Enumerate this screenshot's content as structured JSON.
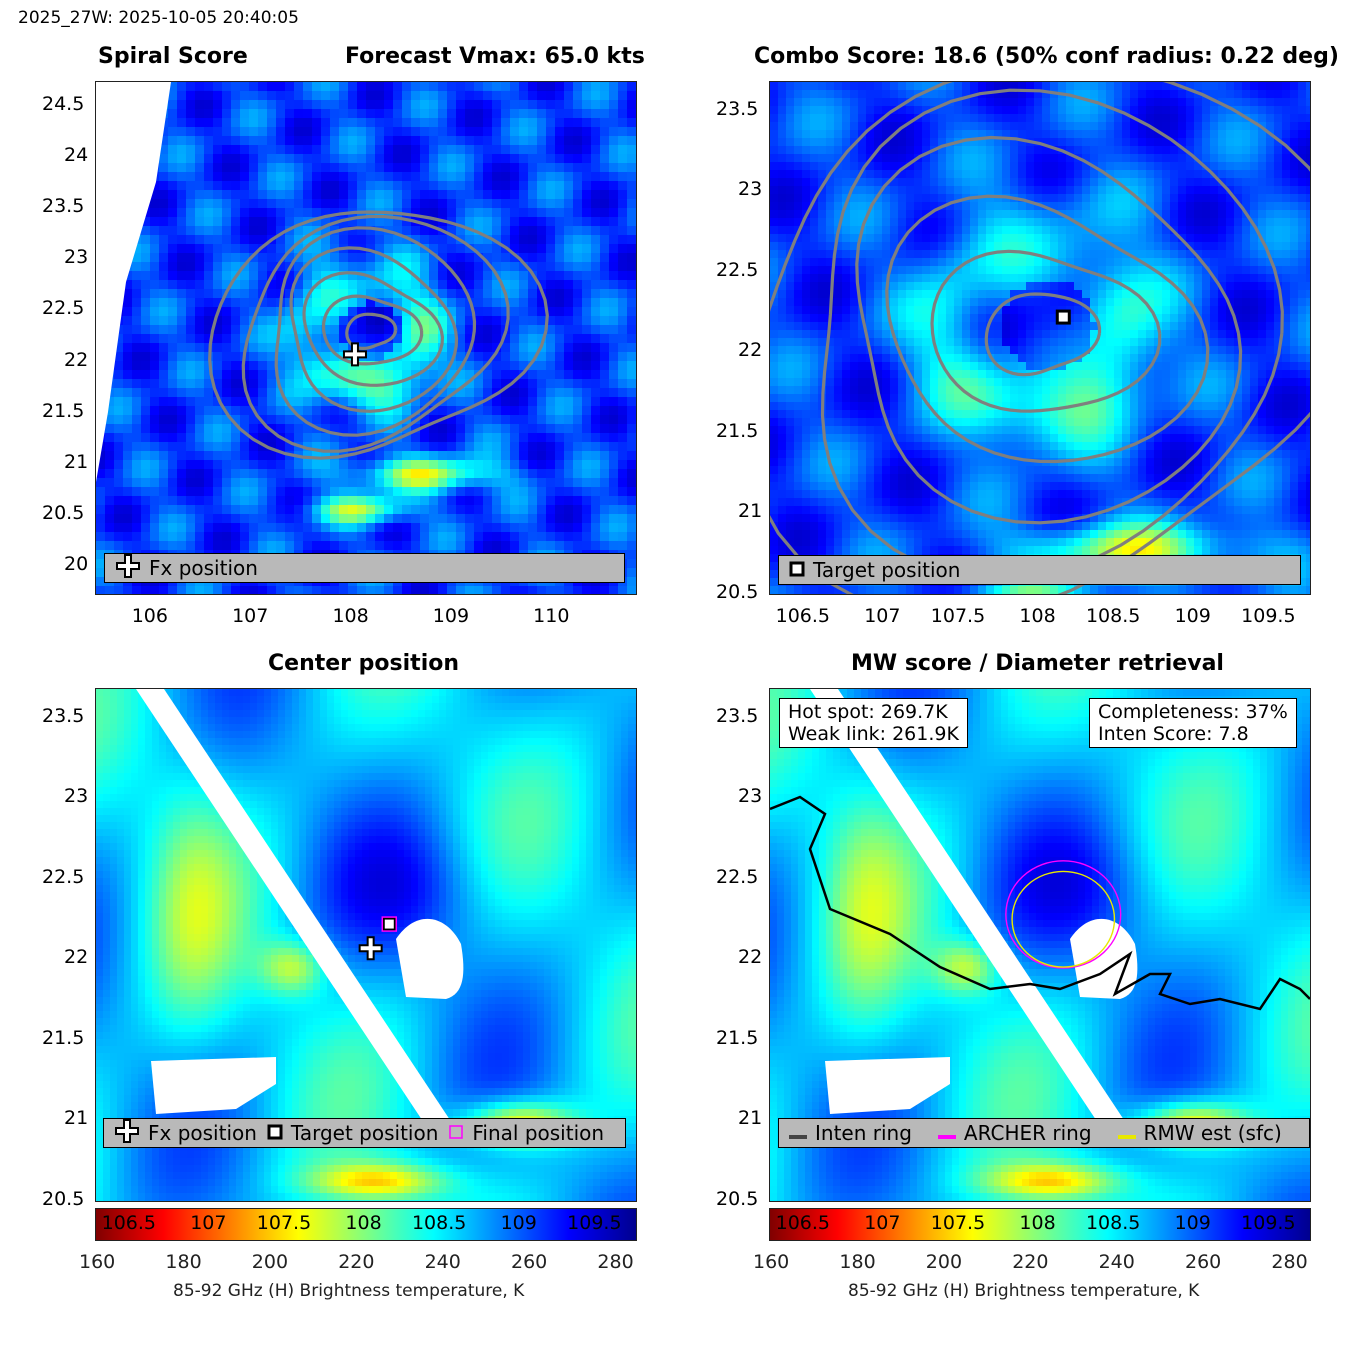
{
  "header": "2025_27W: 2025-10-05 20:40:05",
  "colors": {
    "colormap": [
      "#800000",
      "#ff0000",
      "#ff8000",
      "#ffff00",
      "#80ff80",
      "#00ffff",
      "#0080ff",
      "#0000ff",
      "#00008f"
    ],
    "contour": "#7f7f7f",
    "land": "#ffffff",
    "archer": "#ff00ff",
    "rmw": "#e8e800",
    "coast": "#000000"
  },
  "panels": {
    "spiral": {
      "title_left": "Spiral Score",
      "title_right": "Forecast Vmax: 65.0 kts",
      "legend": [
        "Fx position"
      ],
      "legend_icons": [
        "white-cross-icon"
      ]
    },
    "combo": {
      "title": "Combo Score: 18.6  (50% conf radius: 0.22 deg)",
      "legend": [
        "Target position"
      ],
      "legend_icons": [
        "black-square-icon"
      ]
    },
    "center": {
      "title": "Center position",
      "legend": [
        "Fx position",
        "Target position",
        "Final position"
      ],
      "legend_icons": [
        "white-cross-icon",
        "black-square-icon",
        "magenta-square-icon"
      ]
    },
    "mw": {
      "title": "MW score / Diameter retrieval",
      "info_left": [
        "Hot spot: 269.7K",
        "Weak link: 261.9K"
      ],
      "info_right": [
        "Completeness: 37%",
        "Inten Score: 7.8"
      ],
      "legend": [
        "Inten ring",
        "ARCHER ring",
        "RMW est (sfc)"
      ],
      "legend_icons": [
        "black-line-icon",
        "magenta-line-icon",
        "yellow-line-icon"
      ]
    }
  },
  "chart_data": [
    {
      "type": "heatmap",
      "title": "Spiral Score",
      "subtitle": "Forecast Vmax: 65.0 kts",
      "xlim": [
        105.47,
        110.85
      ],
      "ylim": [
        19.73,
        24.73
      ],
      "xticks": [
        106,
        107,
        108,
        109,
        110
      ],
      "yticks": [
        20,
        20.5,
        21,
        21.5,
        22,
        22.5,
        23,
        23.5,
        24,
        24.5
      ],
      "xticklabels": [
        "106",
        "107",
        "108",
        "109",
        "110"
      ],
      "yticklabels": [
        "20",
        "20.5",
        "21",
        "21.5",
        "22",
        "22.5",
        "23",
        "23.5",
        "24",
        "24.5"
      ],
      "markers": [
        {
          "label": "Fx position",
          "x": 108.05,
          "y": 22.07
        }
      ],
      "cloud_center": [
        108.2,
        22.3
      ],
      "legend_position": "bottom"
    },
    {
      "type": "heatmap",
      "title": "Combo Score: 18.6  (50% conf radius: 0.22 deg)",
      "xlim": [
        106.28,
        109.76
      ],
      "ylim": [
        20.5,
        23.68
      ],
      "xticks": [
        106.5,
        107,
        107.5,
        108,
        108.5,
        109,
        109.5
      ],
      "yticks": [
        20.5,
        21,
        21.5,
        22,
        22.5,
        23,
        23.5
      ],
      "xticklabels": [
        "106.5",
        "107",
        "107.5",
        "108",
        "108.5",
        "109",
        "109.5"
      ],
      "yticklabels": [
        "20.5",
        "21",
        "21.5",
        "22",
        "22.5",
        "23",
        "23.5"
      ],
      "markers": [
        {
          "label": "Target position",
          "x": 108.17,
          "y": 22.22
        }
      ],
      "legend_position": "bottom"
    },
    {
      "type": "heatmap",
      "title": "Center position",
      "xlim": [
        106.28,
        109.76
      ],
      "ylim": [
        20.5,
        23.68
      ],
      "xticks": [
        106.5,
        107,
        107.5,
        108,
        108.5,
        109,
        109.5
      ],
      "yticks": [
        20.5,
        21,
        21.5,
        22,
        22.5,
        23,
        23.5
      ],
      "xticklabels": [
        "106.5",
        "107",
        "107.5",
        "108",
        "108.5",
        "109",
        "109.5"
      ],
      "yticklabels": [
        "20.5",
        "21",
        "21.5",
        "22",
        "22.5",
        "23",
        "23.5"
      ],
      "markers": [
        {
          "label": "Fx position",
          "x": 108.05,
          "y": 22.07
        },
        {
          "label": "Target position",
          "x": 108.17,
          "y": 22.22
        },
        {
          "label": "Final position",
          "x": 108.17,
          "y": 22.22
        }
      ],
      "colorbar": {
        "label": "85-92 GHz (H) Brightness temperature, K",
        "range": [
          160,
          285
        ],
        "ticks": [
          160,
          180,
          200,
          220,
          240,
          260,
          280
        ]
      },
      "legend_position": "bottom"
    },
    {
      "type": "heatmap",
      "title": "MW score / Diameter retrieval",
      "xlim": [
        106.28,
        109.76
      ],
      "ylim": [
        20.5,
        23.68
      ],
      "xticks": [
        106.5,
        107,
        107.5,
        108,
        108.5,
        109,
        109.5
      ],
      "yticks": [
        20.5,
        21,
        21.5,
        22,
        22.5,
        23,
        23.5
      ],
      "xticklabels": [
        "106.5",
        "107",
        "107.5",
        "108",
        "108.5",
        "109",
        "109.5"
      ],
      "yticklabels": [
        "20.5",
        "21",
        "21.5",
        "22",
        "22.5",
        "23",
        "23.5"
      ],
      "rings": [
        {
          "label": "ARCHER ring",
          "x": 108.17,
          "y": 22.28,
          "r": 0.37
        },
        {
          "label": "RMW est (sfc)",
          "x": 108.17,
          "y": 22.25,
          "r": 0.33
        }
      ],
      "colorbar": {
        "label": "85-92 GHz (H) Brightness temperature, K",
        "range": [
          160,
          285
        ],
        "ticks": [
          160,
          180,
          200,
          220,
          240,
          260,
          280
        ]
      },
      "legend_position": "bottom"
    }
  ]
}
